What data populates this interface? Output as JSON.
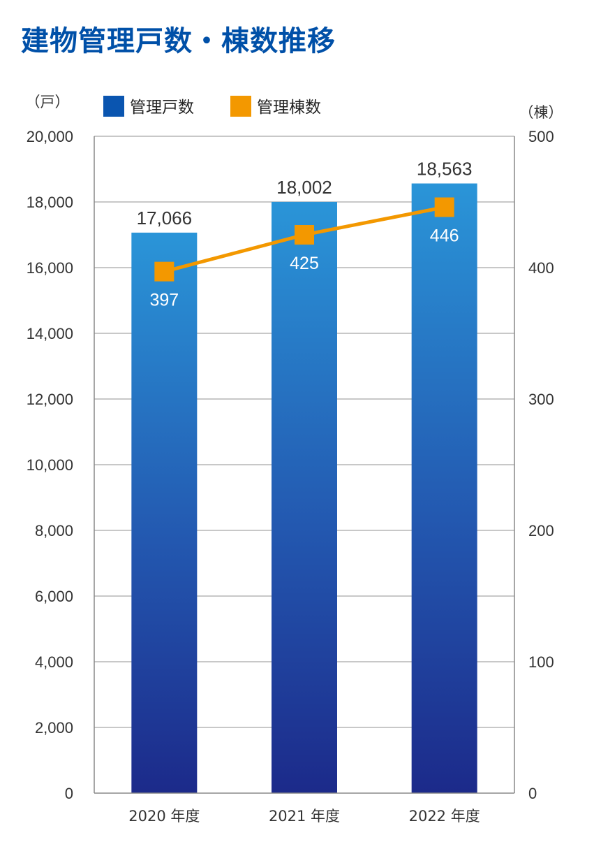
{
  "chart_data": {
    "type": "bar",
    "title": "建物管理戸数・棟数推移",
    "categories": [
      "2020 年度",
      "2021 年度",
      "2022 年度"
    ],
    "left_axis": {
      "unit": "（戸）",
      "ylim": [
        0,
        20000
      ],
      "ticks": [
        "0",
        "2,000",
        "4,000",
        "6,000",
        "8,000",
        "10,000",
        "12,000",
        "14,000",
        "16,000",
        "18,000",
        "20,000"
      ]
    },
    "right_axis": {
      "unit": "（棟）",
      "ylim": [
        0,
        500
      ],
      "ticks": [
        "0",
        "100",
        "200",
        "300",
        "400",
        "500"
      ]
    },
    "series": [
      {
        "name": "管理戸数",
        "type": "bar",
        "axis": "left",
        "values": [
          17066,
          18002,
          18563
        ],
        "labels": [
          "17,066",
          "18,002",
          "18,563"
        ],
        "color": "#1f5fb4"
      },
      {
        "name": "管理棟数",
        "type": "line",
        "axis": "right",
        "values": [
          397,
          425,
          446
        ],
        "labels": [
          "397",
          "425",
          "446"
        ],
        "color": "#f39800"
      }
    ],
    "grid": true,
    "legend_position": "top-left"
  }
}
